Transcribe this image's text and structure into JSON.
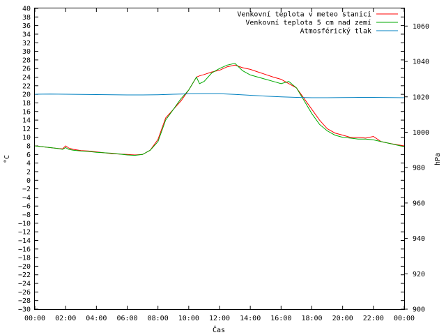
{
  "chart_data": {
    "type": "line",
    "xlabel": "Čas",
    "ylabel": "°C",
    "y2label": "hPa",
    "ylim": [
      -30,
      40
    ],
    "y2lim": [
      900,
      1070
    ],
    "xlim": [
      0,
      24
    ],
    "grid": false,
    "legend_position": "top-right",
    "x_tick_labels": [
      "00:00",
      "02:00",
      "04:00",
      "06:00",
      "08:00",
      "10:00",
      "12:00",
      "14:00",
      "16:00",
      "18:00",
      "20:00",
      "22:00",
      "00:00"
    ],
    "x_tick_values": [
      0,
      2,
      4,
      6,
      8,
      10,
      12,
      14,
      16,
      18,
      20,
      22,
      24
    ],
    "y_tick_values": [
      -30,
      -28,
      -26,
      -24,
      -22,
      -20,
      -18,
      -16,
      -14,
      -12,
      -10,
      -8,
      -6,
      -4,
      -2,
      0,
      2,
      4,
      6,
      8,
      10,
      12,
      14,
      16,
      18,
      20,
      22,
      24,
      26,
      28,
      30,
      32,
      34,
      36,
      38,
      40
    ],
    "y2_tick_values": [
      900,
      920,
      940,
      960,
      980,
      1000,
      1020,
      1040,
      1060
    ],
    "series": [
      {
        "name": "Venkovní teplota v meteo stanici",
        "color": "#ff0000",
        "axis": "left",
        "x": [
          0,
          0.5,
          1,
          1.5,
          1.8,
          2,
          2.2,
          2.5,
          3,
          3.5,
          4,
          4.5,
          5,
          5.5,
          6,
          6.5,
          7,
          7.5,
          8,
          8.5,
          9,
          9.5,
          10,
          10.5,
          10.7,
          11,
          11.5,
          12,
          12.5,
          13,
          13.5,
          14,
          14.5,
          15,
          15.5,
          16,
          16.5,
          17,
          17.5,
          18,
          18.5,
          19,
          19.5,
          20,
          20.5,
          21,
          21.5,
          22,
          22.5,
          23,
          23.5,
          24
        ],
        "y": [
          8,
          7.8,
          7.6,
          7.4,
          7.3,
          8,
          7.5,
          7.2,
          6.9,
          6.8,
          6.6,
          6.4,
          6.2,
          6.1,
          6,
          5.9,
          6,
          7,
          9.5,
          14.5,
          16.5,
          18.5,
          21,
          24,
          24.3,
          24.6,
          25.2,
          25.6,
          26.4,
          26.8,
          26.2,
          25.8,
          25.2,
          24.6,
          24,
          23.5,
          22.5,
          21.5,
          19,
          16.5,
          14,
          12,
          11,
          10.5,
          10,
          10,
          9.8,
          10.2,
          9,
          8.6,
          8.3,
          8
        ]
      },
      {
        "name": "Venkovní teplota 5 cm nad zemí",
        "color": "#00aa00",
        "axis": "left",
        "x": [
          0,
          0.5,
          1,
          1.5,
          1.8,
          2,
          2.2,
          2.5,
          3,
          3.5,
          4,
          4.5,
          5,
          5.5,
          6,
          6.5,
          7,
          7.5,
          8,
          8.5,
          9,
          9.5,
          10,
          10.5,
          10.7,
          11,
          11.5,
          12,
          12.5,
          13,
          13.5,
          14,
          14.5,
          15,
          15.5,
          16,
          16.5,
          17,
          17.5,
          18,
          18.5,
          19,
          19.5,
          20,
          20.5,
          21,
          21.5,
          22,
          22.5,
          23,
          23.5,
          24
        ],
        "y": [
          8,
          7.8,
          7.6,
          7.4,
          7.2,
          7.6,
          7.2,
          7,
          6.8,
          6.7,
          6.5,
          6.4,
          6.3,
          6.1,
          5.9,
          5.8,
          6,
          7,
          9,
          14,
          16.5,
          19,
          21,
          24,
          22.5,
          23,
          25,
          26,
          26.8,
          27.2,
          25.5,
          24.5,
          24,
          23.5,
          23,
          22.5,
          23,
          21.5,
          18.5,
          15.5,
          13,
          11.5,
          10.5,
          10,
          9.8,
          9.6,
          9.6,
          9.4,
          9,
          8.6,
          8.2,
          7.8
        ]
      },
      {
        "name": "Atmosférický tlak",
        "color": "#0080c0",
        "axis": "right",
        "x": [
          0,
          1,
          2,
          3,
          4,
          5,
          6,
          7,
          8,
          9,
          10,
          11,
          12,
          13,
          14,
          15,
          16,
          17,
          18,
          19,
          20,
          21,
          22,
          23,
          24
        ],
        "y": [
          1021.5,
          1021.6,
          1021.5,
          1021.4,
          1021.3,
          1021.2,
          1021.1,
          1021.1,
          1021.2,
          1021.5,
          1021.7,
          1021.8,
          1021.8,
          1021.4,
          1020.9,
          1020.4,
          1020,
          1019.7,
          1019.5,
          1019.5,
          1019.6,
          1019.7,
          1019.7,
          1019.6,
          1019.5
        ]
      }
    ]
  }
}
